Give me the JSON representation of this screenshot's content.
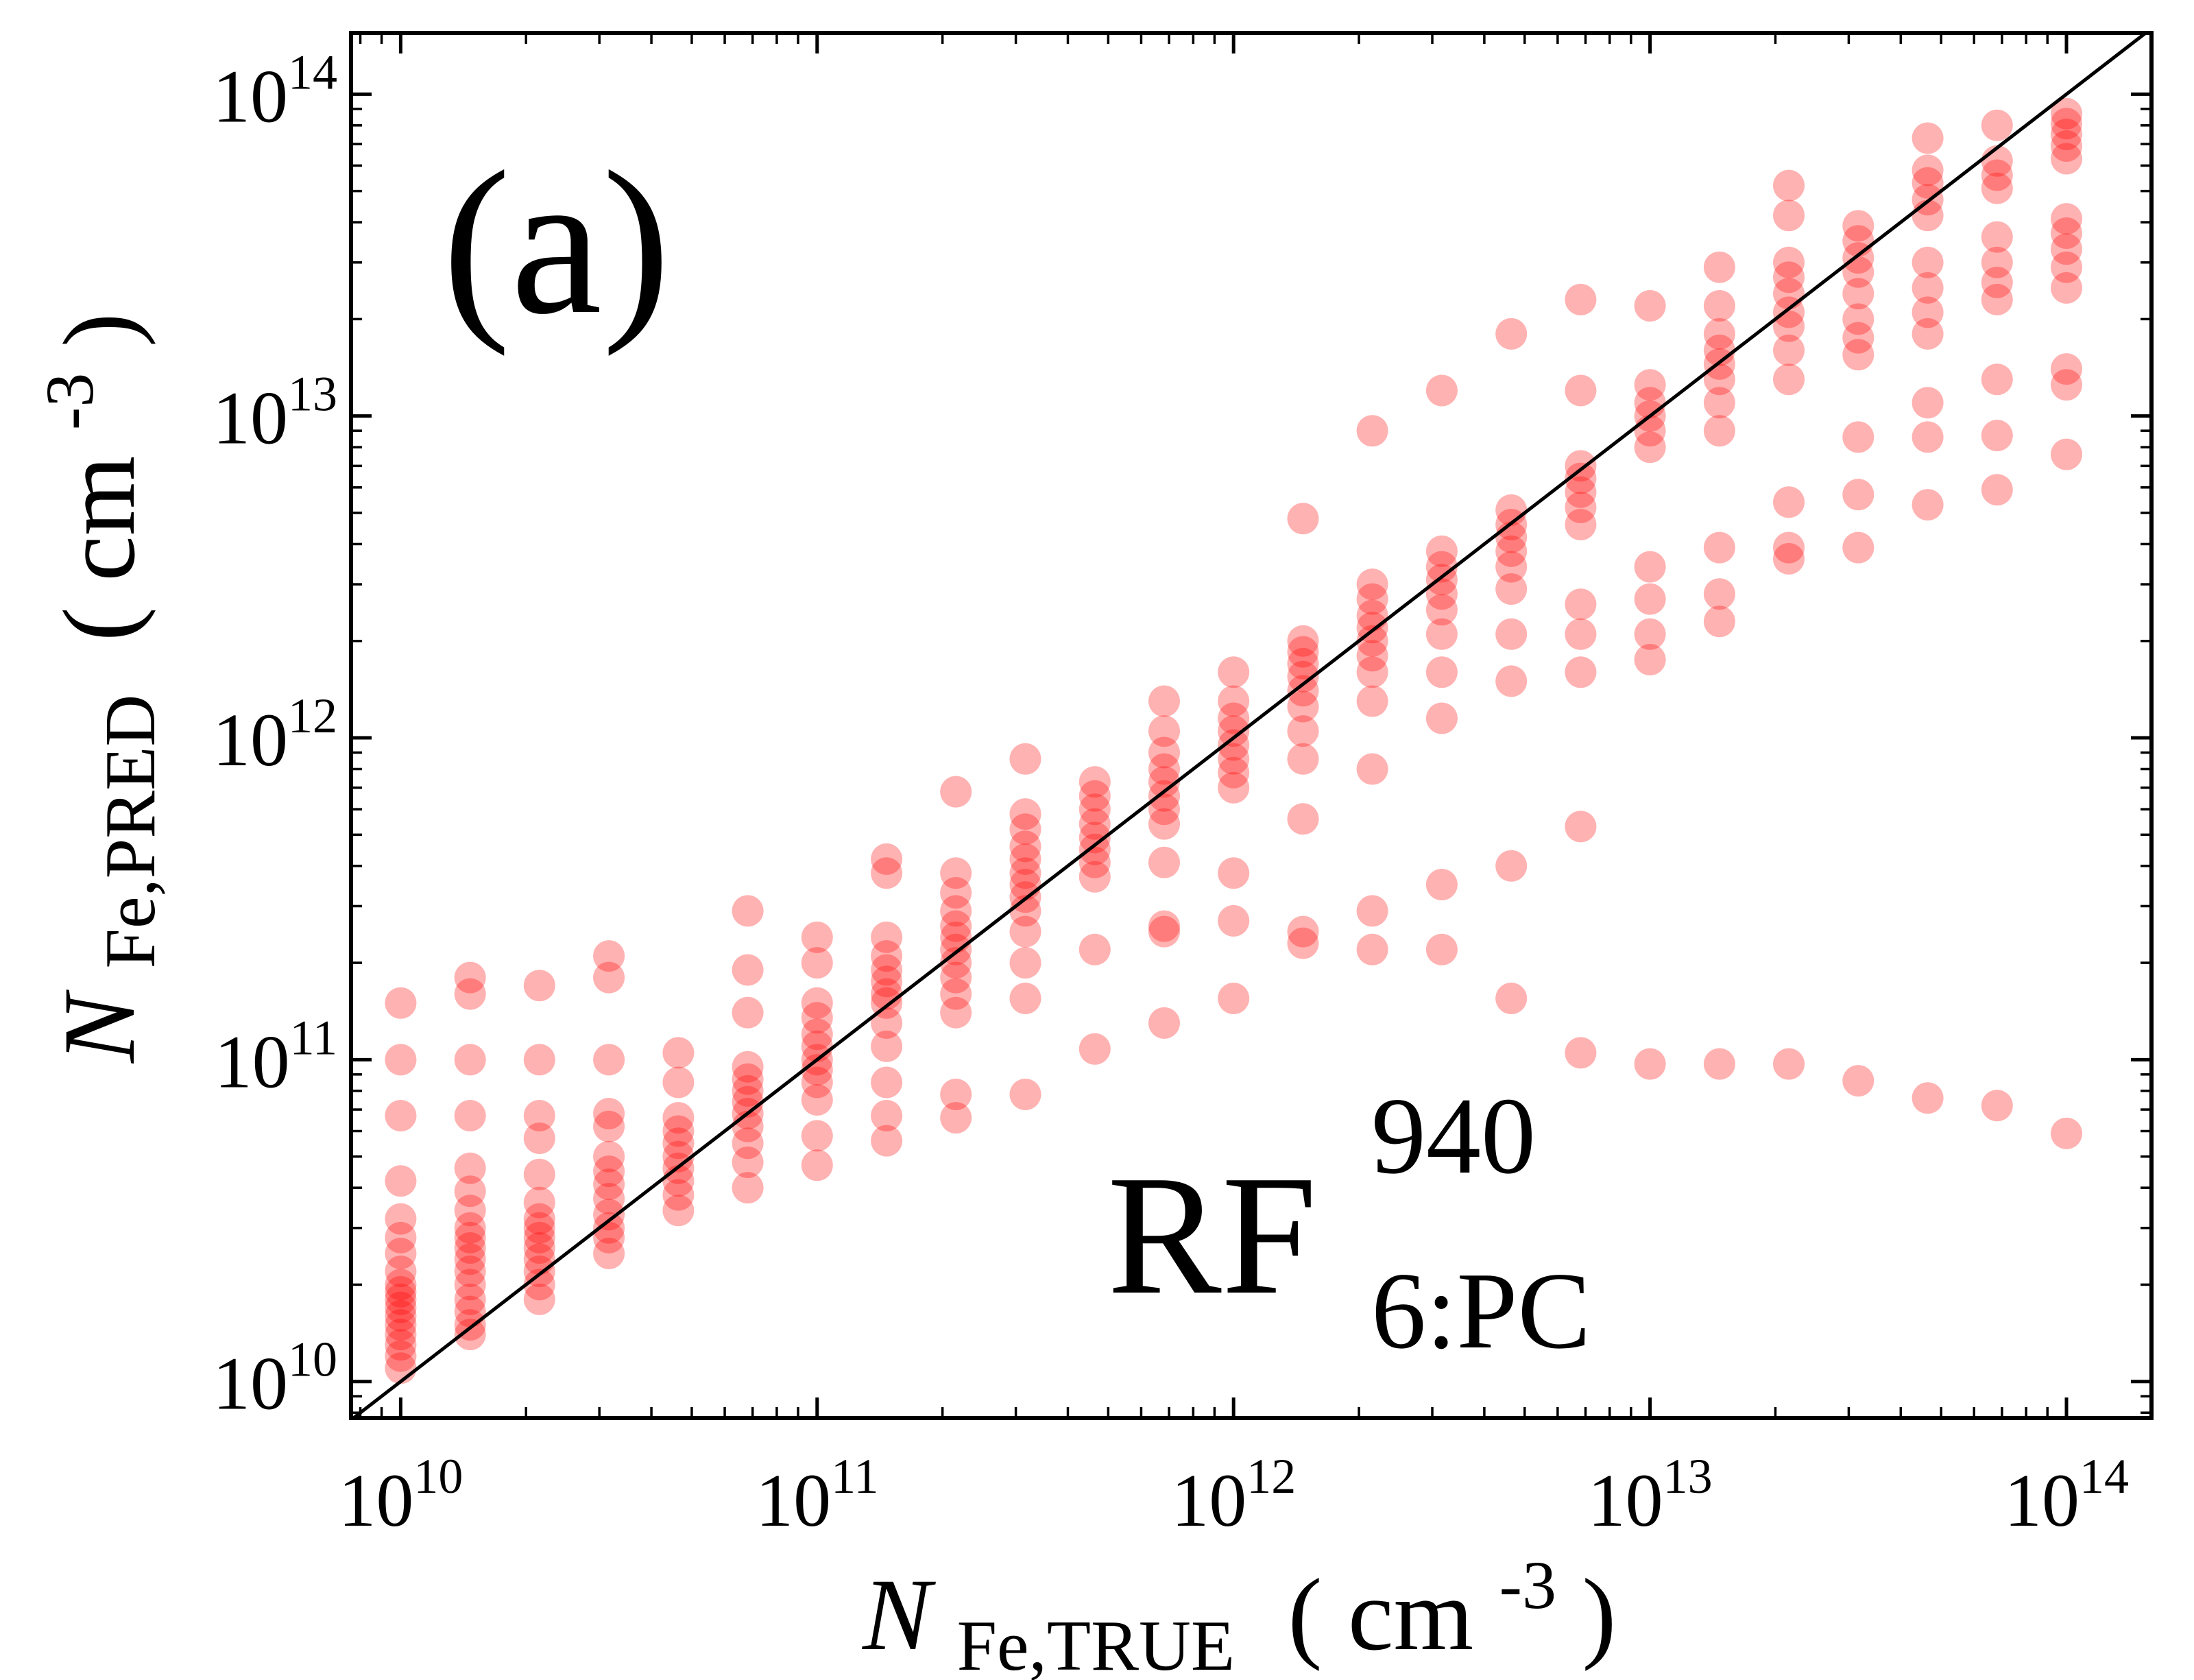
{
  "chart_data": {
    "type": "scatter",
    "panel_label": "(a)",
    "annotation": {
      "main": "RF",
      "superscript": "940",
      "subscript": "6:PC"
    },
    "xlabel": {
      "symbol": "N",
      "subscript": "Fe,TRUE",
      "unit": "( cm",
      "unit_exp": "-3",
      "unit_close": " )"
    },
    "ylabel": {
      "symbol": "N",
      "subscript": "Fe,PRED",
      "unit": "( cm",
      "unit_exp": "-3",
      "unit_close": " )"
    },
    "x_scale": "log",
    "y_scale": "log",
    "xlim": [
      7600000000.0,
      160000000000000.0
    ],
    "ylim": [
      7700000000.0,
      155000000000000.0
    ],
    "x_ticks": [
      {
        "base": "10",
        "exp": "10",
        "value": 10000000000.0
      },
      {
        "base": "10",
        "exp": "11",
        "value": 100000000000.0
      },
      {
        "base": "10",
        "exp": "12",
        "value": 1000000000000.0
      },
      {
        "base": "10",
        "exp": "13",
        "value": 10000000000000.0
      },
      {
        "base": "10",
        "exp": "14",
        "value": 100000000000000.0
      }
    ],
    "y_ticks": [
      {
        "base": "10",
        "exp": "10",
        "value": 10000000000.0
      },
      {
        "base": "10",
        "exp": "11",
        "value": 100000000000.0
      },
      {
        "base": "10",
        "exp": "12",
        "value": 1000000000000.0
      },
      {
        "base": "10",
        "exp": "13",
        "value": 10000000000000.0
      },
      {
        "base": "10",
        "exp": "14",
        "value": 100000000000000.0
      }
    ],
    "reference_line": "y = x",
    "grid": false,
    "marker_color": "#ff0000",
    "marker_alpha": 0.3,
    "line_color": "#000000",
    "series": [
      {
        "points": [
          [
            10000000000.0,
            [
              11000000000.0,
              12000000000.0,
              13000000000.0,
              14000000000.0,
              15000000000.0,
              16000000000.0,
              17000000000.0,
              18000000000.0,
              19000000000.0,
              20000000000.0,
              22000000000.0,
              25000000000.0,
              28000000000.0,
              32000000000.0,
              42000000000.0,
              67000000000.0,
              100000000000.0,
              150000000000.0
            ]
          ],
          [
            14680000000.0,
            [
              14000000000.0,
              15000000000.0,
              16500000000.0,
              18000000000.0,
              20000000000.0,
              22000000000.0,
              24000000000.0,
              26000000000.0,
              28000000000.0,
              30000000000.0,
              34000000000.0,
              39000000000.0,
              46000000000.0,
              67000000000.0,
              100000000000.0,
              160000000000.0,
              180000000000.0
            ]
          ],
          [
            21540000000.0,
            [
              18000000000.0,
              20000000000.0,
              22000000000.0,
              24000000000.0,
              26000000000.0,
              28000000000.0,
              30000000000.0,
              32000000000.0,
              36000000000.0,
              44000000000.0,
              57000000000.0,
              67000000000.0,
              100000000000.0,
              170000000000.0
            ]
          ],
          [
            31620000000.0,
            [
              25000000000.0,
              28000000000.0,
              30000000000.0,
              33000000000.0,
              37000000000.0,
              41000000000.0,
              45000000000.0,
              50000000000.0,
              62000000000.0,
              68000000000.0,
              100000000000.0,
              180000000000.0,
              210000000000.0
            ]
          ],
          [
            46420000000.0,
            [
              34000000000.0,
              38000000000.0,
              42000000000.0,
              46000000000.0,
              50000000000.0,
              55000000000.0,
              60000000000.0,
              66000000000.0,
              85000000000.0,
              105000000000.0
            ]
          ],
          [
            68130000000.0,
            [
              40000000000.0,
              48000000000.0,
              55000000000.0,
              62000000000.0,
              68000000000.0,
              74000000000.0,
              80000000000.0,
              87000000000.0,
              95000000000.0,
              140000000000.0,
              190000000000.0,
              290000000000.0
            ]
          ],
          [
            100000000000.0,
            [
              47000000000.0,
              58000000000.0,
              75000000000.0,
              85000000000.0,
              93000000000.0,
              100000000000.0,
              110000000000.0,
              120000000000.0,
              135000000000.0,
              150000000000.0,
              200000000000.0,
              240000000000.0
            ]
          ],
          [
            146800000000.0,
            [
              56000000000.0,
              67000000000.0,
              85000000000.0,
              110000000000.0,
              130000000000.0,
              150000000000.0,
              160000000000.0,
              175000000000.0,
              190000000000.0,
              210000000000.0,
              240000000000.0,
              380000000000.0,
              420000000000.0
            ]
          ],
          [
            215400000000.0,
            [
              66000000000.0,
              78000000000.0,
              140000000000.0,
              160000000000.0,
              180000000000.0,
              200000000000.0,
              220000000000.0,
              240000000000.0,
              260000000000.0,
              290000000000.0,
              330000000000.0,
              380000000000.0,
              680000000000.0
            ]
          ],
          [
            316200000000.0,
            [
              78000000000.0,
              155000000000.0,
              200000000000.0,
              250000000000.0,
              290000000000.0,
              320000000000.0,
              350000000000.0,
              380000000000.0,
              420000000000.0,
              460000000000.0,
              520000000000.0,
              580000000000.0,
              860000000000.0
            ]
          ],
          [
            464200000000.0,
            [
              108000000000.0,
              220000000000.0,
              370000000000.0,
              410000000000.0,
              450000000000.0,
              490000000000.0,
              540000000000.0,
              600000000000.0,
              660000000000.0,
              730000000000.0
            ]
          ],
          [
            681300000000.0,
            [
              130000000000.0,
              250000000000.0,
              260000000000.0,
              410000000000.0,
              540000000000.0,
              600000000000.0,
              660000000000.0,
              730000000000.0,
              800000000000.0,
              900000000000.0,
              1050000000000.0,
              1300000000000.0
            ]
          ],
          [
            1000000000000.0,
            [
              155000000000.0,
              270000000000.0,
              380000000000.0,
              700000000000.0,
              780000000000.0,
              860000000000.0,
              950000000000.0,
              1050000000000.0,
              1150000000000.0,
              1300000000000.0,
              1600000000000.0
            ]
          ],
          [
            1468000000000.0,
            [
              230000000000.0,
              250000000000.0,
              560000000000.0,
              860000000000.0,
              1050000000000.0,
              1250000000000.0,
              1400000000000.0,
              1550000000000.0,
              1700000000000.0,
              1850000000000.0,
              2000000000000.0,
              4800000000000.0
            ]
          ],
          [
            2154000000000.0,
            [
              220000000000.0,
              290000000000.0,
              800000000000.0,
              1300000000000.0,
              1600000000000.0,
              1800000000000.0,
              2000000000000.0,
              2200000000000.0,
              2400000000000.0,
              2700000000000.0,
              3000000000000.0,
              9000000000000.0
            ]
          ],
          [
            3162000000000.0,
            [
              220000000000.0,
              350000000000.0,
              1150000000000.0,
              1600000000000.0,
              2100000000000.0,
              2500000000000.0,
              2800000000000.0,
              3100000000000.0,
              3400000000000.0,
              3800000000000.0,
              12000000000000.0
            ]
          ],
          [
            4642000000000.0,
            [
              155000000000.0,
              400000000000.0,
              1500000000000.0,
              2100000000000.0,
              2900000000000.0,
              3400000000000.0,
              3800000000000.0,
              4200000000000.0,
              4600000000000.0,
              5100000000000.0,
              18000000000000.0
            ]
          ],
          [
            6813000000000.0,
            [
              105000000000.0,
              530000000000.0,
              1600000000000.0,
              2100000000000.0,
              2600000000000.0,
              4600000000000.0,
              5200000000000.0,
              5800000000000.0,
              6400000000000.0,
              7000000000000.0,
              12000000000000.0,
              23000000000000.0
            ]
          ],
          [
            10000000000000.0,
            [
              97000000000.0,
              1750000000000.0,
              2100000000000.0,
              2700000000000.0,
              3400000000000.0,
              8000000000000.0,
              9000000000000.0,
              10000000000000.0,
              11000000000000.0,
              12500000000000.0,
              22000000000000.0
            ]
          ],
          [
            14680000000000.0,
            [
              97000000000.0,
              2300000000000.0,
              2800000000000.0,
              3900000000000.0,
              9000000000000.0,
              11000000000000.0,
              13000000000000.0,
              14500000000000.0,
              16000000000000.0,
              18000000000000.0,
              22000000000000.0,
              29000000000000.0
            ]
          ],
          [
            21540000000000.0,
            [
              97000000000.0,
              3600000000000.0,
              3900000000000.0,
              5400000000000.0,
              13000000000000.0,
              16000000000000.0,
              19000000000000.0,
              21000000000000.0,
              24000000000000.0,
              27000000000000.0,
              30000000000000.0,
              42000000000000.0,
              52000000000000.0
            ]
          ],
          [
            31620000000000.0,
            [
              86000000000.0,
              3900000000000.0,
              5700000000000.0,
              8600000000000.0,
              15500000000000.0,
              17500000000000.0,
              20000000000000.0,
              24000000000000.0,
              28000000000000.0,
              31000000000000.0,
              35000000000000.0,
              39000000000000.0
            ]
          ],
          [
            46420000000000.0,
            [
              76000000000.0,
              5300000000000.0,
              8600000000000.0,
              11000000000000.0,
              18000000000000.0,
              21000000000000.0,
              25000000000000.0,
              30000000000000.0,
              42000000000000.0,
              47000000000000.0,
              53000000000000.0,
              58000000000000.0,
              73000000000000.0
            ]
          ],
          [
            68130000000000.0,
            [
              72000000000.0,
              5900000000000.0,
              8700000000000.0,
              13000000000000.0,
              23000000000000.0,
              26000000000000.0,
              30000000000000.0,
              36000000000000.0,
              51000000000000.0,
              56000000000000.0,
              62000000000000.0,
              80000000000000.0
            ]
          ],
          [
            100000000000000.0,
            [
              59000000000.0,
              7600000000000.0,
              12500000000000.0,
              14000000000000.0,
              25000000000000.0,
              29000000000000.0,
              33000000000000.0,
              37000000000000.0,
              41000000000000.0,
              63000000000000.0,
              69000000000000.0,
              75000000000000.0,
              81000000000000.0,
              87000000000000.0
            ]
          ]
        ]
      }
    ]
  }
}
